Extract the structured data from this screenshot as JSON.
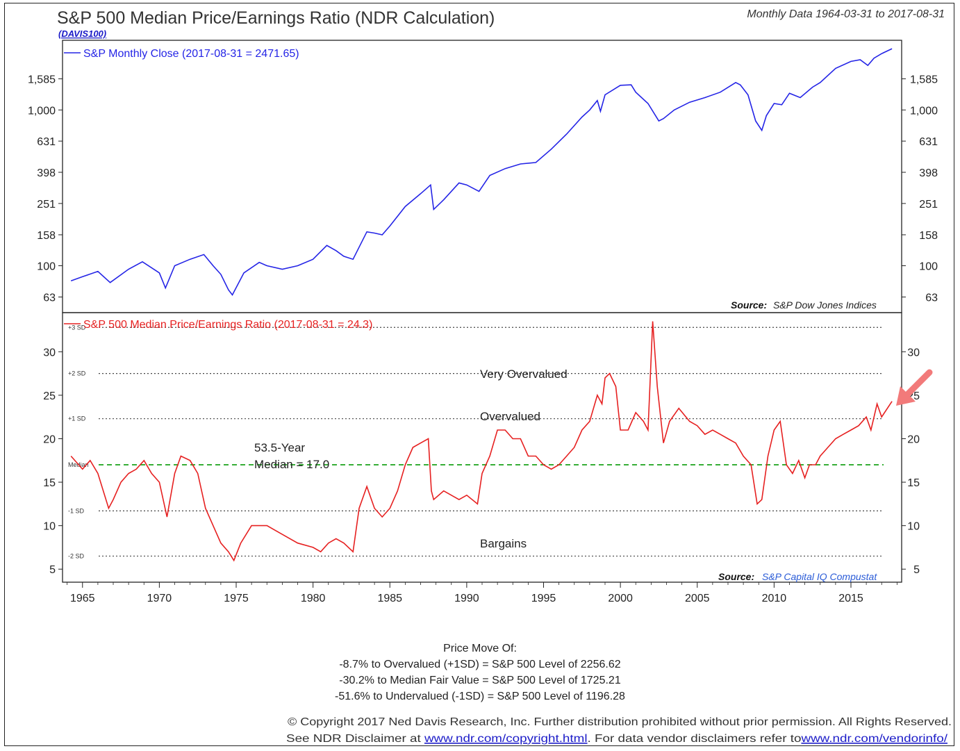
{
  "header": {
    "title": "S&P 500 Median Price/Earnings Ratio (NDR Calculation)",
    "code": "(DAVIS100)",
    "date_range": "Monthly Data 1964-03-31 to 2017-08-31"
  },
  "colors": {
    "price": "#2424e6",
    "pe": "#e62020",
    "median": "#1aa31a",
    "arrow": "#f27a7a"
  },
  "chart_data": [
    {
      "type": "line",
      "scale": "log",
      "legend": "S&P Monthly Close (2017-08-31 = 2471.65)",
      "source_label": "Source:",
      "source_name": "S&P Dow Jones Indices",
      "yticks": [
        "1,585",
        "1,000",
        "631",
        "398",
        "251",
        "158",
        "100",
        "63"
      ],
      "ylim": [
        50,
        2800
      ],
      "series": [
        {
          "x": [
            1964.25,
            1965.0,
            1966.0,
            1966.8,
            1968.0,
            1968.9,
            1970.0,
            1970.4,
            1971.0,
            1972.0,
            1972.9,
            1973.5,
            1974.0,
            1974.5,
            1974.75,
            1975.5,
            1976.5,
            1977.0,
            1978.0,
            1979.0,
            1980.0,
            1980.9,
            1981.5,
            1982.0,
            1982.6,
            1983.5,
            1984.0,
            1984.5,
            1985.0,
            1986.0,
            1987.0,
            1987.65,
            1987.85,
            1988.5,
            1989.5,
            1990.0,
            1990.8,
            1991.5,
            1992.5,
            1993.5,
            1994.5,
            1995.5,
            1996.5,
            1997.5,
            1998.0,
            1998.5,
            1998.7,
            1999.0,
            2000.0,
            2000.7,
            2001.0,
            2001.8,
            2002.5,
            2002.8,
            2003.5,
            2004.5,
            2005.5,
            2006.5,
            2007.5,
            2007.8,
            2008.3,
            2008.8,
            2009.2,
            2009.5,
            2010.0,
            2010.5,
            2011.0,
            2011.7,
            2012.5,
            2013.0,
            2014.0,
            2015.0,
            2015.6,
            2016.1,
            2016.5,
            2017.0,
            2017.67
          ],
          "y": [
            80,
            85,
            92,
            78,
            95,
            106,
            90,
            72,
            100,
            110,
            118,
            100,
            88,
            70,
            65,
            90,
            105,
            100,
            95,
            100,
            110,
            135,
            125,
            115,
            110,
            165,
            162,
            158,
            180,
            240,
            290,
            330,
            230,
            265,
            340,
            330,
            300,
            380,
            420,
            450,
            460,
            560,
            700,
            900,
            1000,
            1150,
            980,
            1250,
            1440,
            1450,
            1300,
            1100,
            850,
            880,
            1000,
            1120,
            1200,
            1300,
            1500,
            1450,
            1250,
            850,
            740,
            920,
            1100,
            1080,
            1280,
            1200,
            1400,
            1500,
            1850,
            2050,
            2100,
            1930,
            2150,
            2300,
            2472
          ]
        }
      ]
    },
    {
      "type": "line",
      "legend": "S&P 500 Median Price/Earnings Ratio (2017-08-31 = 24.3)",
      "source_label": "Source:",
      "source_name": "S&P Capital IQ Compustat",
      "yticks": [
        "30",
        "25",
        "20",
        "15",
        "10",
        "5"
      ],
      "ylim": [
        3.5,
        34.5
      ],
      "sd_lines": [
        {
          "label": "+3 SD",
          "value": 32.8
        },
        {
          "label": "+2 SD",
          "value": 27.5
        },
        {
          "label": "+1 SD",
          "value": 22.3
        },
        {
          "label": "Median",
          "value": 17.0
        },
        {
          "label": "-1 SD",
          "value": 11.7
        },
        {
          "label": "-2 SD",
          "value": 6.5
        }
      ],
      "zones": [
        "Very Overvalued",
        "Overvalued",
        "Bargains"
      ],
      "median_note": [
        "53.5-Year",
        "Median = 17.0"
      ],
      "series": [
        {
          "x": [
            1964.25,
            1965.0,
            1965.5,
            1966.0,
            1966.7,
            1967.0,
            1967.5,
            1968.0,
            1968.5,
            1969.0,
            1969.5,
            1970.0,
            1970.5,
            1971.0,
            1971.4,
            1972.0,
            1972.5,
            1973.0,
            1973.5,
            1974.0,
            1974.5,
            1974.85,
            1975.3,
            1976.0,
            1977.0,
            1978.0,
            1979.0,
            1980.0,
            1980.5,
            1981.0,
            1981.5,
            1982.0,
            1982.6,
            1983.0,
            1983.5,
            1984.0,
            1984.5,
            1985.0,
            1985.5,
            1986.0,
            1986.5,
            1987.0,
            1987.5,
            1987.7,
            1987.85,
            1988.5,
            1989.5,
            1990.0,
            1990.7,
            1991.0,
            1991.5,
            1992.0,
            1992.5,
            1993.0,
            1993.5,
            1994.0,
            1994.5,
            1995.0,
            1995.5,
            1996.0,
            1996.5,
            1997.0,
            1997.5,
            1998.0,
            1998.5,
            1998.8,
            1999.0,
            1999.3,
            1999.7,
            2000.0,
            2000.5,
            2001.0,
            2001.5,
            2001.8,
            2002.1,
            2002.4,
            2002.8,
            2003.2,
            2003.8,
            2004.5,
            2005.0,
            2005.5,
            2006.0,
            2006.5,
            2007.0,
            2007.5,
            2008.0,
            2008.5,
            2008.9,
            2009.2,
            2009.6,
            2010.0,
            2010.4,
            2010.8,
            2011.2,
            2011.6,
            2012.0,
            2012.3,
            2012.7,
            2013.0,
            2013.5,
            2014.0,
            2014.5,
            2015.0,
            2015.5,
            2016.0,
            2016.3,
            2016.7,
            2017.0,
            2017.67
          ],
          "y": [
            18,
            16.5,
            17.5,
            16,
            12,
            13,
            15,
            16,
            16.5,
            17.5,
            16,
            15,
            11,
            16,
            18,
            17.5,
            16,
            12,
            10,
            8,
            7,
            6,
            8,
            10,
            10,
            9,
            8,
            7.5,
            7,
            8,
            8.5,
            8,
            7,
            12,
            14.5,
            12,
            11,
            12,
            14,
            17,
            19,
            19.5,
            20,
            14,
            13,
            14,
            13,
            13.5,
            12.5,
            16,
            18,
            21,
            21,
            20,
            20,
            18,
            18,
            17,
            16.5,
            17,
            18,
            19,
            21,
            22,
            25,
            24,
            27,
            27.5,
            26,
            21,
            21,
            23,
            22,
            21,
            33.5,
            26,
            19.5,
            22,
            23.5,
            22,
            21.5,
            20.5,
            21,
            20.5,
            20,
            19.5,
            18,
            17,
            12.5,
            13,
            18,
            21,
            22,
            17,
            16,
            17.5,
            15.5,
            17,
            17,
            18,
            19,
            20,
            20.5,
            21,
            21.5,
            22.5,
            21,
            24,
            22.5,
            24.3
          ]
        }
      ]
    },
    {
      "type": "axis",
      "xticks": [
        1965,
        1970,
        1975,
        1980,
        1985,
        1990,
        1995,
        2000,
        2005,
        2010,
        2015
      ],
      "xlim": [
        1963.7,
        2018.3
      ]
    }
  ],
  "footer": {
    "heading": "Price Move Of:",
    "lines": [
      "-8.7% to Overvalued (+1SD) = S&P 500 Level of 2256.62",
      "-30.2% to Median Fair Value = S&P 500 Level of 1725.21",
      "-51.6% to Undervalued (-1SD) = S&P 500 Level of 1196.28"
    ],
    "copyright": "© Copyright 2017 Ned Davis Research, Inc. Further distribution prohibited without prior permission. All Rights Reserved.",
    "disclaimer_pre": "See NDR Disclaimer at ",
    "disclaimer_link1": "www.ndr.com/copyright.html",
    "disclaimer_mid": ". For data vendor disclaimers refer to",
    "disclaimer_link2": "www.ndr.com/vendorinfo/"
  }
}
